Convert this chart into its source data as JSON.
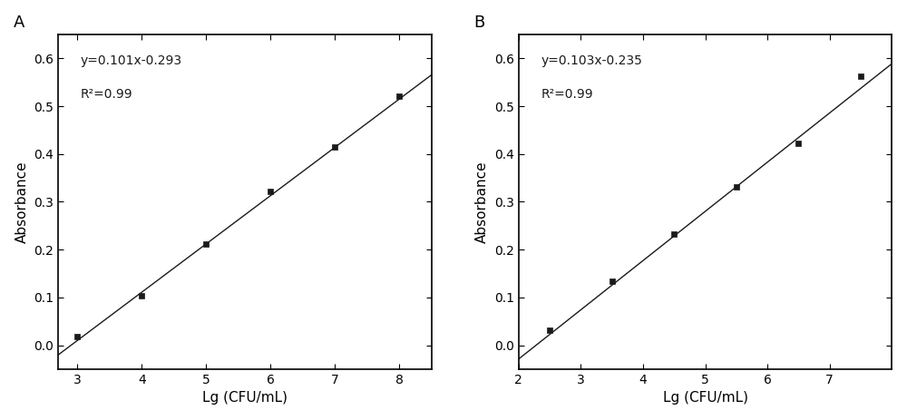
{
  "panel_A": {
    "label": "A",
    "x_data": [
      3,
      4,
      5,
      6,
      7,
      8
    ],
    "y_data": [
      0.018,
      0.104,
      0.212,
      0.321,
      0.414,
      0.521
    ],
    "slope": 0.101,
    "intercept": -0.293,
    "r2": 0.99,
    "equation": "y=0.101x-0.293",
    "r2_text": "R²=0.99",
    "xlabel": "Lg (CFU/mL)",
    "ylabel": "Absorbance",
    "xlim": [
      2.7,
      8.5
    ],
    "ylim": [
      -0.05,
      0.65
    ],
    "xticks": [
      3,
      4,
      5,
      6,
      7,
      8
    ],
    "yticks": [
      0.0,
      0.1,
      0.2,
      0.3,
      0.4,
      0.5,
      0.6
    ],
    "x_fit_start": 2.7,
    "x_fit_end": 8.5
  },
  "panel_B": {
    "label": "B",
    "x_data": [
      2.5,
      3.5,
      4.5,
      5.5,
      6.5,
      7.5
    ],
    "y_data": [
      0.032,
      0.133,
      0.233,
      0.332,
      0.422,
      0.563
    ],
    "slope": 0.103,
    "intercept": -0.235,
    "r2": 0.99,
    "equation": "y=0.103x-0.235",
    "r2_text": "R²=0.99",
    "xlabel": "Lg (CFU/mL)",
    "ylabel": "Absorbance",
    "xlim": [
      2.0,
      8.0
    ],
    "ylim": [
      -0.05,
      0.65
    ],
    "xticks": [
      2,
      3,
      4,
      5,
      6,
      7
    ],
    "yticks": [
      0.0,
      0.1,
      0.2,
      0.3,
      0.4,
      0.5,
      0.6
    ],
    "x_fit_start": 2.0,
    "x_fit_end": 8.0
  },
  "marker_color": "#1a1a1a",
  "line_color": "#1a1a1a",
  "marker": "s",
  "marker_size": 5,
  "line_width": 1.0,
  "font_size_label": 11,
  "font_size_tick": 10,
  "font_size_eq": 10,
  "font_size_panel": 13,
  "background_color": "#ffffff"
}
